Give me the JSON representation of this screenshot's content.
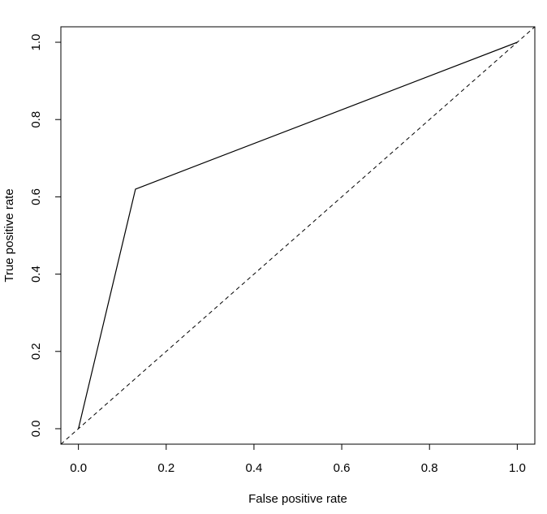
{
  "chart_data": {
    "type": "line",
    "xlabel": "False positive rate",
    "ylabel": "True positive rate",
    "series": [
      {
        "color": "#000000",
        "x": [
          0,
          0.13,
          1
        ],
        "values": [
          0,
          0.62,
          1
        ]
      }
    ],
    "reference_line": {
      "intercept": 0,
      "slope": 1,
      "dashed": true,
      "color": "#000000"
    },
    "xlim": [
      -0.04,
      1.04
    ],
    "ylim": [
      -0.04,
      1.04
    ],
    "xticks": [
      {
        "value": 0,
        "label": "0.0"
      },
      0.2,
      0.4,
      0.6,
      0.8,
      {
        "value": 1,
        "label": "1.0"
      }
    ],
    "yticks": [
      {
        "value": 0,
        "label": "0.0"
      },
      0.2,
      0.4,
      0.6,
      0.8,
      {
        "value": 1,
        "label": "1.0"
      }
    ],
    "grid": false
  }
}
